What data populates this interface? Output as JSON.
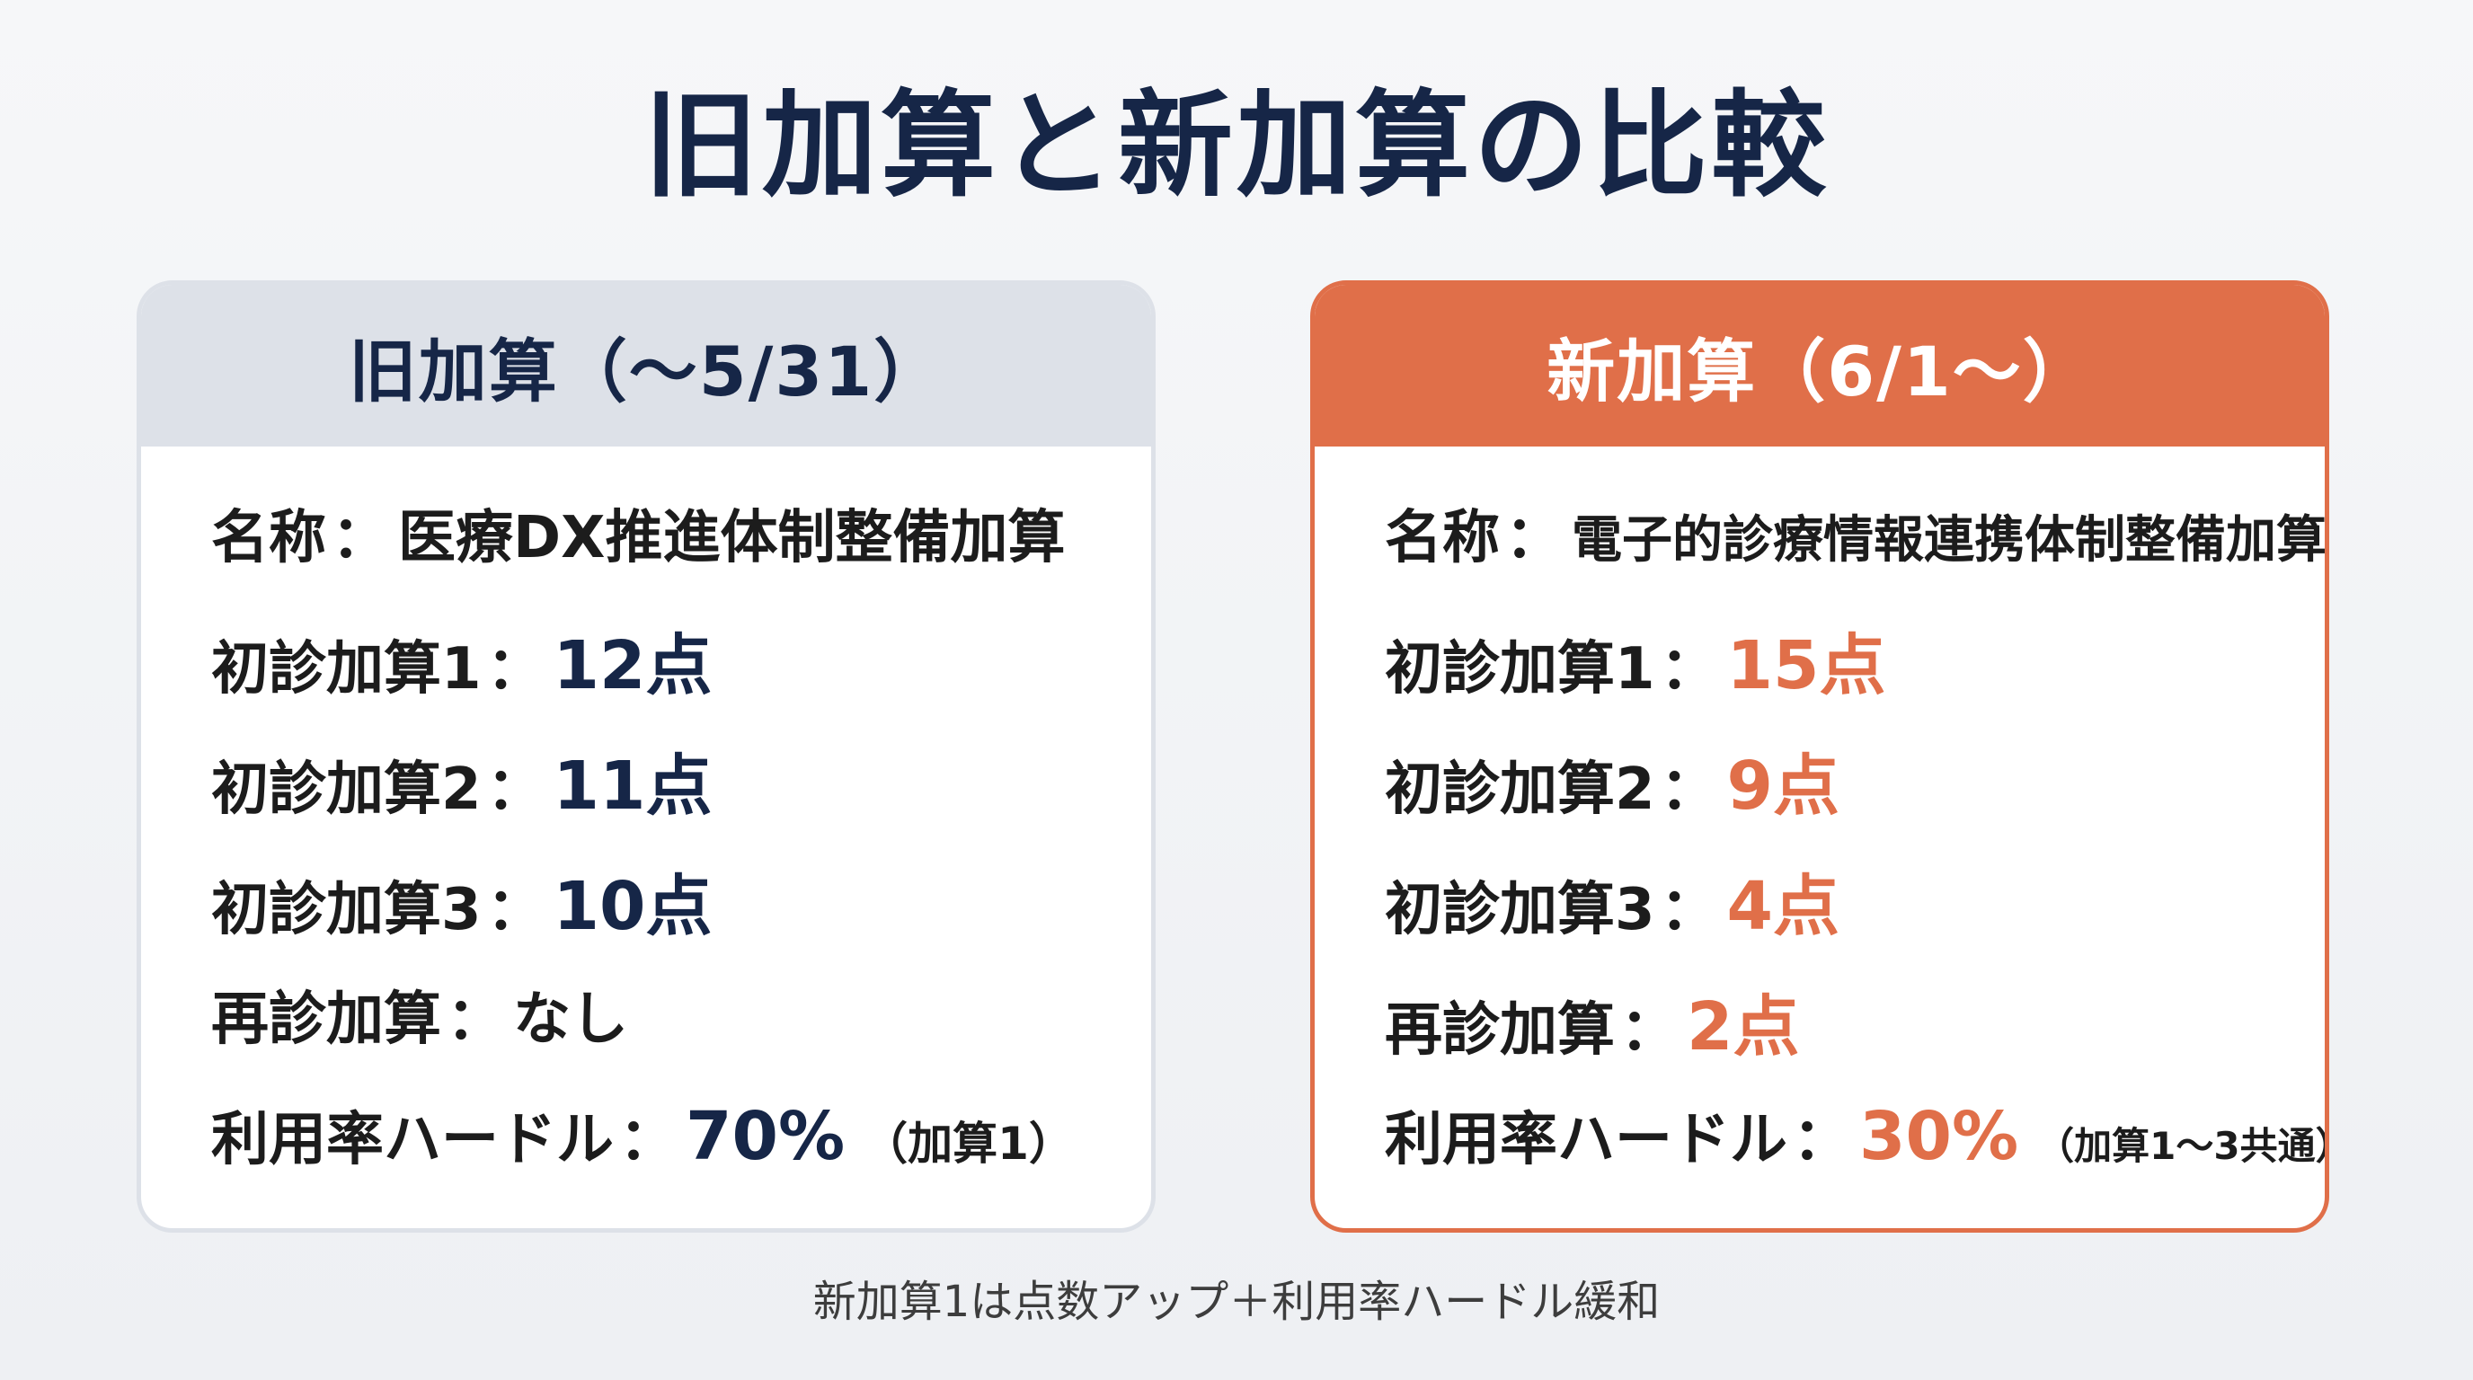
{
  "title": "旧加算と新加算の比較",
  "old_card": {
    "header": "旧加算（～5/31）",
    "name_label": "名称",
    "name_value": "医療DX推進体制整備加算",
    "rows": [
      {
        "label": "初診加算1",
        "value": "12点"
      },
      {
        "label": "初診加算2",
        "value": "11点"
      },
      {
        "label": "初診加算3",
        "value": "10点"
      },
      {
        "label": "再診加算",
        "value": "なし"
      }
    ],
    "usage_label": "利用率ハードル",
    "usage_value": "70%",
    "usage_note": "（加算1）"
  },
  "new_card": {
    "header": "新加算（6/1～）",
    "name_label": "名称",
    "name_value": "電子的診療情報連携体制整備加算",
    "rows": [
      {
        "label": "初診加算1",
        "value": "15点"
      },
      {
        "label": "初診加算2",
        "value": "9点"
      },
      {
        "label": "初診加算3",
        "value": "4点"
      },
      {
        "label": "再診加算",
        "value": "2点"
      }
    ],
    "usage_label": "利用率ハードル",
    "usage_value": "30%",
    "usage_note": "（加算1～3共通）"
  },
  "separator": "：",
  "footnote": "新加算1は点数アップ＋利用率ハードル緩和",
  "colors": {
    "navy": "#162647",
    "orange": "#e06f49",
    "old_header_bg": "#dde1e8"
  }
}
